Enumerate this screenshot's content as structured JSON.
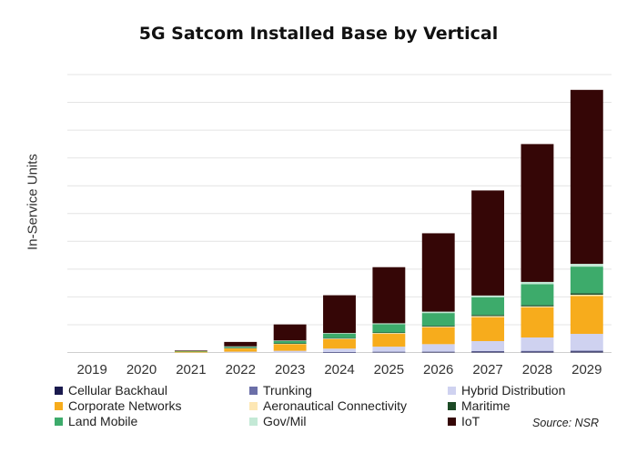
{
  "chart_data": {
    "type": "bar",
    "stacked": true,
    "title": "5G Satcom Installed Base by Vertical",
    "xlabel": "",
    "ylabel": "In-Service Units",
    "ylim": [
      0,
      100
    ],
    "grid": true,
    "legend_position": "bottom",
    "categories": [
      "2019",
      "2020",
      "2021",
      "2022",
      "2023",
      "2024",
      "2025",
      "2026",
      "2027",
      "2028",
      "2029"
    ],
    "series": [
      {
        "name": "Cellular Backhaul",
        "color": "#1a1a4e",
        "values": [
          0,
          0,
          0,
          0,
          0,
          0.1,
          0.2,
          0.2,
          0.3,
          0.3,
          0.4
        ]
      },
      {
        "name": "Trunking",
        "color": "#6b6fa8",
        "values": [
          0,
          0,
          0,
          0,
          0,
          0.1,
          0.1,
          0.2,
          0.2,
          0.3,
          0.3
        ]
      },
      {
        "name": "Hybrid Distribution",
        "color": "#cfd2f0",
        "values": [
          0,
          0,
          0,
          0.3,
          0.6,
          1.2,
          1.8,
          2.6,
          3.6,
          4.8,
          6.0
        ]
      },
      {
        "name": "Corporate Networks",
        "color": "#f7ac1c",
        "values": [
          0,
          0,
          0.4,
          1.2,
          2.4,
          3.4,
          4.6,
          6.0,
          8.6,
          10.8,
          13.6
        ]
      },
      {
        "name": "Aeronautical Connectivity",
        "color": "#fde7b4",
        "values": [
          0,
          0,
          0,
          0.1,
          0.2,
          0.2,
          0.3,
          0.3,
          0.4,
          0.4,
          0.5
        ]
      },
      {
        "name": "Maritime",
        "color": "#1c4a26",
        "values": [
          0,
          0,
          0,
          0.1,
          0.1,
          0.2,
          0.2,
          0.3,
          0.4,
          0.4,
          0.5
        ]
      },
      {
        "name": "Land Mobile",
        "color": "#3dab6b",
        "values": [
          0,
          0,
          0.1,
          0.4,
          0.8,
          1.6,
          3.0,
          4.6,
          6.4,
          7.6,
          9.6
        ]
      },
      {
        "name": "Gov/Mil",
        "color": "#c4e9d6",
        "values": [
          0,
          0,
          0,
          0.1,
          0.2,
          0.2,
          0.3,
          0.5,
          0.6,
          0.8,
          1.0
        ]
      },
      {
        "name": "IoT",
        "color": "#350606",
        "values": [
          0,
          0,
          0.2,
          1.6,
          5.8,
          13.6,
          20.2,
          28.2,
          37.8,
          49.6,
          62.6
        ]
      }
    ]
  },
  "source_note": "Source: NSR"
}
